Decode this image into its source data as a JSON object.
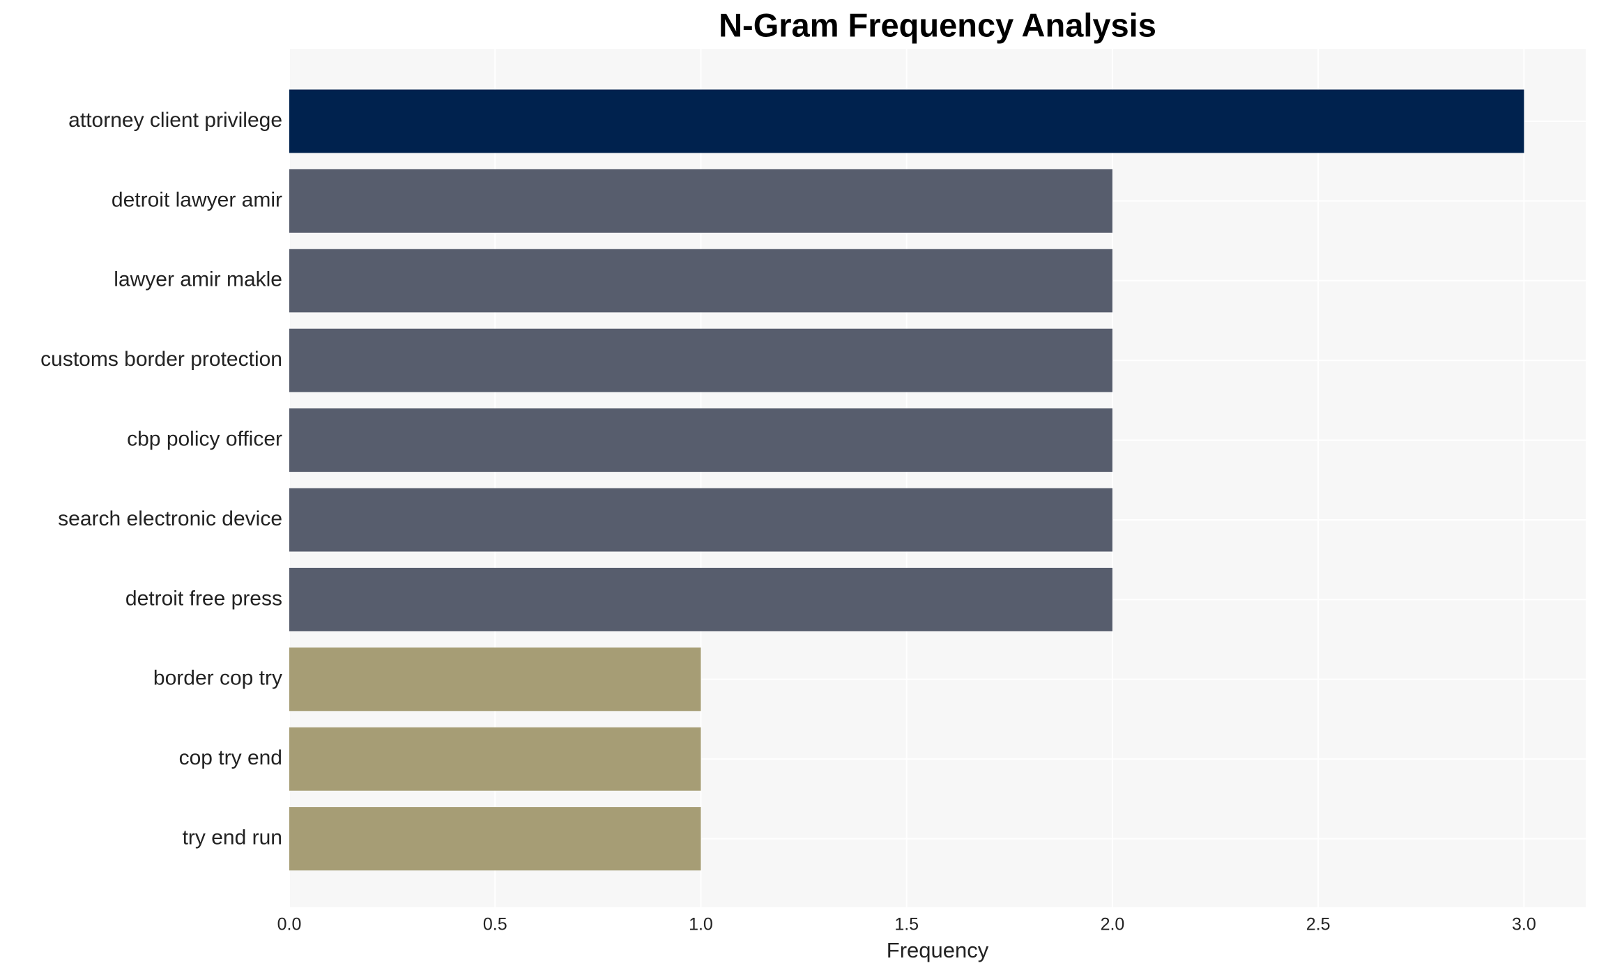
{
  "chart_data": {
    "type": "barh",
    "title": "N-Gram Frequency Analysis",
    "x_label": "Frequency",
    "categories": [
      "attorney client privilege",
      "detroit lawyer amir",
      "lawyer amir makle",
      "customs border protection",
      "cbp policy officer",
      "search electronic device",
      "detroit free press",
      "border cop try",
      "cop try end",
      "try end run"
    ],
    "values": [
      3,
      2,
      2,
      2,
      2,
      2,
      2,
      1,
      1,
      1
    ],
    "colors": [
      "#00224e",
      "#575d6d",
      "#575d6d",
      "#575d6d",
      "#575d6d",
      "#575d6d",
      "#575d6d",
      "#a69d75",
      "#a69d75",
      "#a69d75"
    ],
    "xlim": [
      0,
      3.15
    ],
    "xticks": [
      {
        "value": 0,
        "label": "0.0"
      },
      0.5,
      {
        "value": 1,
        "label": "1.0"
      },
      1.5,
      {
        "value": 2,
        "label": "2.0"
      },
      2.5,
      {
        "value": 3,
        "label": "3.0"
      }
    ],
    "grid": true
  }
}
